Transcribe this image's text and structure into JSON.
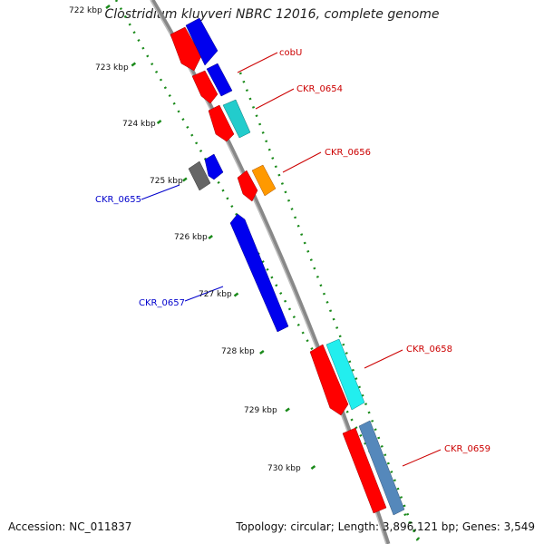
{
  "title": "Clostridium kluyveri NBRC 12016, complete genome",
  "footer": {
    "accession_label": "Accession: NC_011837",
    "topology_text": "Topology: circular; Length: 3,896,121 bp; Genes: 3,549"
  },
  "ticks": [
    {
      "label": "722 kbp",
      "kbp": 722
    },
    {
      "label": "723 kbp",
      "kbp": 723
    },
    {
      "label": "724 kbp",
      "kbp": 724
    },
    {
      "label": "725 kbp",
      "kbp": 725
    },
    {
      "label": "726 kbp",
      "kbp": 726
    },
    {
      "label": "727 kbp",
      "kbp": 727
    },
    {
      "label": "728 kbp",
      "kbp": 728
    },
    {
      "label": "729 kbp",
      "kbp": 729
    },
    {
      "label": "730 kbp",
      "kbp": 730
    }
  ],
  "gene_labels": [
    {
      "text": "cobU",
      "color": "#cc0000"
    },
    {
      "text": "CKR_0654",
      "color": "#cc0000"
    },
    {
      "text": "CKR_0656",
      "color": "#cc0000"
    },
    {
      "text": "CKR_0655",
      "color": "#0000cc"
    },
    {
      "text": "CKR_0657",
      "color": "#0000cc"
    },
    {
      "text": "CKR_0658",
      "color": "#cc0000"
    },
    {
      "text": "CKR_0659",
      "color": "#cc0000"
    }
  ],
  "colors": {
    "backbone": "#888888",
    "tick_dots": "#1a8a1a",
    "cds_red": "#ff0000",
    "cds_blue": "#0000ee",
    "cyan": "#22cccc",
    "bright_cyan": "#22eeee",
    "orange": "#ff9900",
    "gray": "#666666",
    "steel_blue": "#5588bb"
  }
}
